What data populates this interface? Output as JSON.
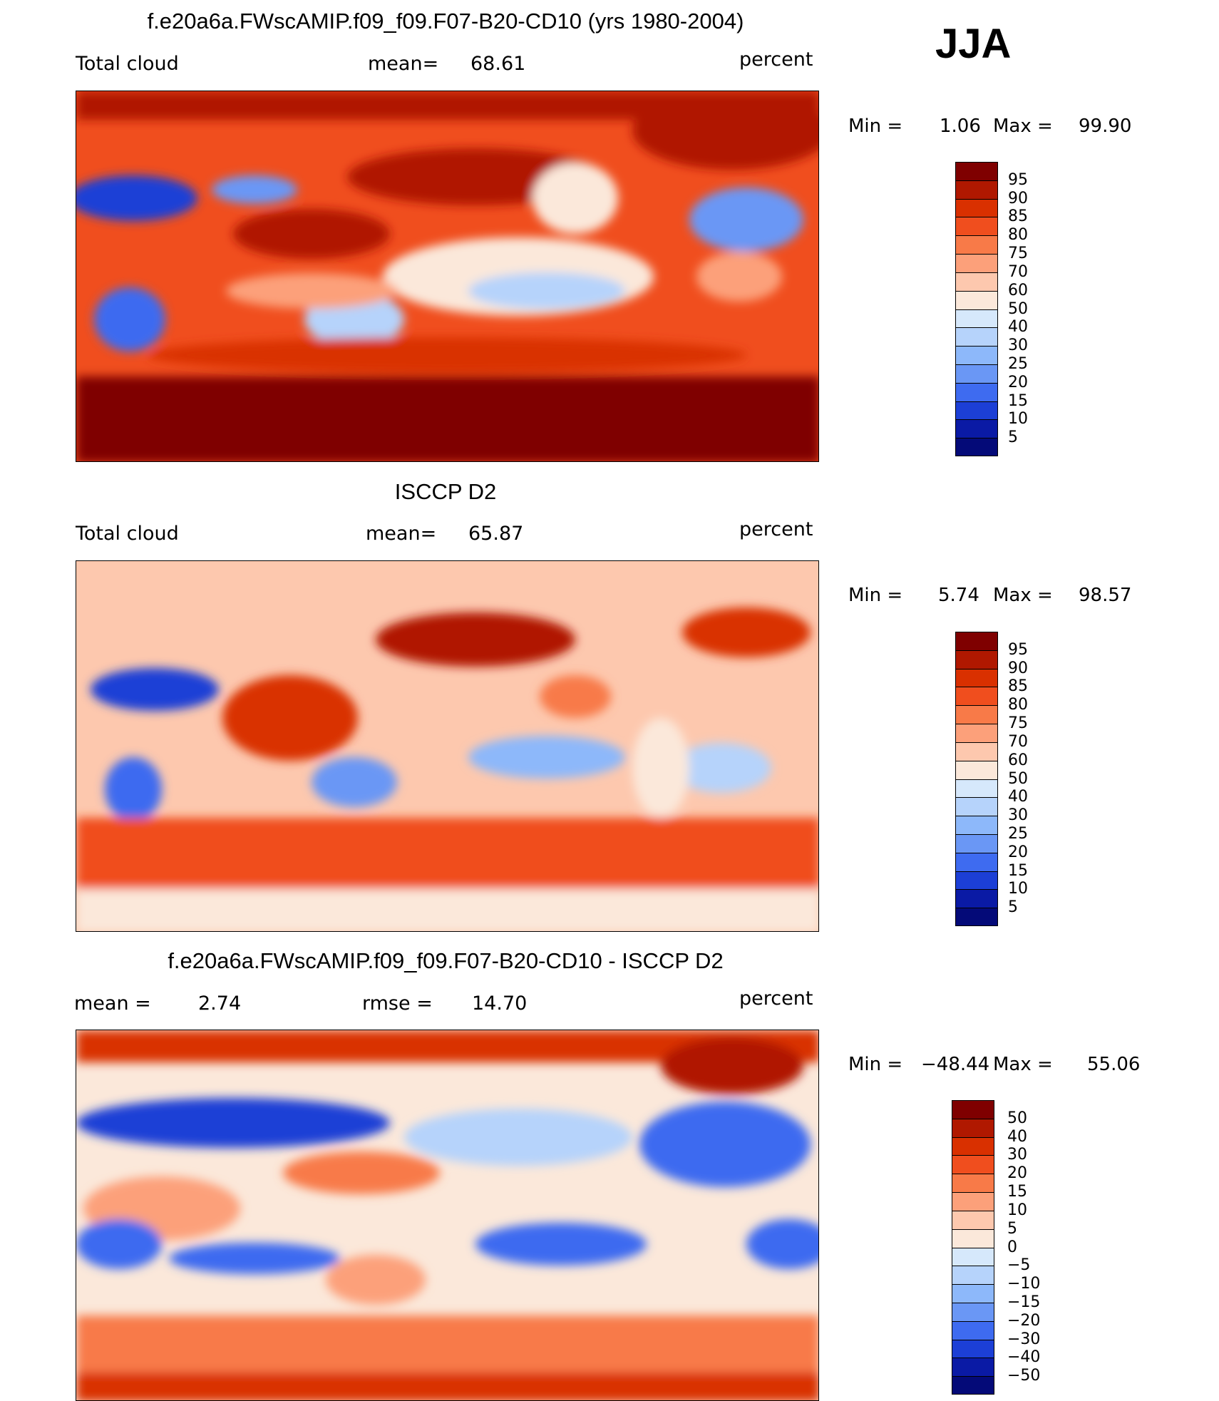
{
  "season": "JJA",
  "unit_label": "percent",
  "panels": [
    {
      "title": "f.e20a6a.FWscAMIP.f09_f09.F07-B20-CD10 (yrs 1980-2004)",
      "left_label": "Total cloud",
      "mid_label": "mean=",
      "mid_value": "68.61",
      "min_label": "Min =",
      "min_value": "1.06",
      "max_label": "Max =",
      "max_value": "99.90"
    },
    {
      "title": "ISCCP D2",
      "left_label": "Total cloud",
      "mid_label": "mean=",
      "mid_value": "65.87",
      "min_label": "Min =",
      "min_value": "5.74",
      "max_label": "Max =",
      "max_value": "98.57"
    },
    {
      "title": "f.e20a6a.FWscAMIP.f09_f09.F07-B20-CD10 - ISCCP D2",
      "left_label": "mean =",
      "left_value": "2.74",
      "mid_label": "rmse =",
      "mid_value": "14.70",
      "min_label": "Min =",
      "min_value": "−48.44",
      "max_label": "Max =",
      "max_value": "55.06"
    }
  ],
  "colorbar_abs": {
    "labels": [
      "95",
      "90",
      "85",
      "80",
      "75",
      "70",
      "60",
      "50",
      "40",
      "30",
      "25",
      "20",
      "15",
      "10",
      "5"
    ],
    "colors": [
      "#7f0000",
      "#b01800",
      "#d93000",
      "#f04e1e",
      "#f87a48",
      "#fca07a",
      "#fdc8ae",
      "#fbe8da",
      "#d6e8fb",
      "#b6d3fb",
      "#8db8fa",
      "#6a97f5",
      "#3e6bf0",
      "#1c3fd6",
      "#0a1aa5",
      "#040a78"
    ]
  },
  "colorbar_diff": {
    "labels": [
      "50",
      "40",
      "30",
      "20",
      "15",
      "10",
      "5",
      "0",
      "−5",
      "−10",
      "−15",
      "−20",
      "−30",
      "−40",
      "−50"
    ],
    "colors": [
      "#7f0000",
      "#b01800",
      "#d93000",
      "#f04e1e",
      "#f87a48",
      "#fca07a",
      "#fdc8ae",
      "#fbe8da",
      "#d6e8fb",
      "#b6d3fb",
      "#8db8fa",
      "#6a97f5",
      "#3e6bf0",
      "#1c3fd6",
      "#0a1aa5",
      "#040a78"
    ]
  }
}
